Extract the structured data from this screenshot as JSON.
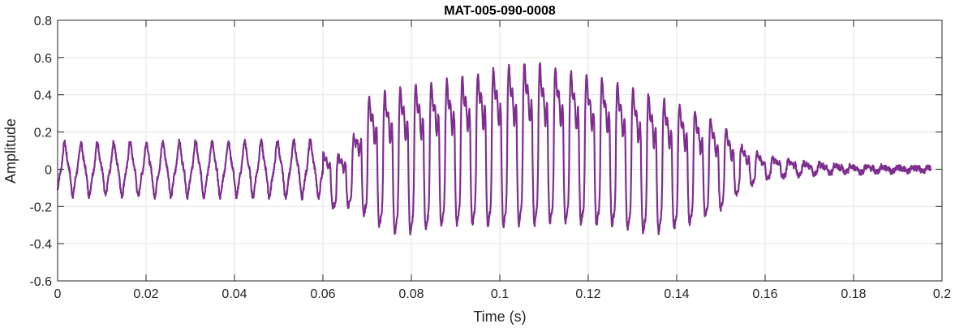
{
  "chart_data": {
    "type": "line",
    "title": "MAT-005-090-0008",
    "xlabel": "Time (s)",
    "ylabel": "Amplitude",
    "xlim": [
      0,
      0.2
    ],
    "ylim": [
      -0.6,
      0.8
    ],
    "xticks": [
      0,
      0.02,
      0.04,
      0.06,
      0.08,
      0.1,
      0.12,
      0.14,
      0.16,
      0.18,
      0.2
    ],
    "xtick_labels": [
      "0",
      "0.02",
      "0.04",
      "0.06",
      "0.08",
      "0.1",
      "0.12",
      "0.14",
      "0.16",
      "0.18",
      "0.2"
    ],
    "yticks": [
      -0.6,
      -0.4,
      -0.2,
      0,
      0.2,
      0.4,
      0.6,
      0.8
    ],
    "ytick_labels": [
      "-0.6",
      "-0.4",
      "-0.2",
      "0",
      "0.2",
      "0.4",
      "0.6",
      "0.8"
    ],
    "grid": true,
    "line_color": "#7E2F8E",
    "series": [
      {
        "x_start": 0,
        "x_end": 0.1975,
        "envelope_x": [
          0,
          0.06,
          0.063,
          0.066,
          0.07,
          0.075,
          0.08,
          0.09,
          0.1,
          0.107,
          0.115,
          0.125,
          0.135,
          0.142,
          0.15,
          0.155,
          0.16,
          0.17,
          0.18,
          0.1975
        ],
        "envelope_pos": [
          0.12,
          0.13,
          0.11,
          0.16,
          0.45,
          0.52,
          0.55,
          0.58,
          0.65,
          0.68,
          0.63,
          0.57,
          0.48,
          0.42,
          0.3,
          0.15,
          0.08,
          0.04,
          0.02,
          0.01
        ],
        "envelope_neg": [
          -0.12,
          -0.13,
          -0.25,
          -0.22,
          -0.3,
          -0.4,
          -0.4,
          -0.35,
          -0.37,
          -0.36,
          -0.35,
          -0.36,
          -0.4,
          -0.35,
          -0.25,
          -0.12,
          -0.06,
          -0.03,
          -0.02,
          -0.01
        ]
      }
    ]
  }
}
